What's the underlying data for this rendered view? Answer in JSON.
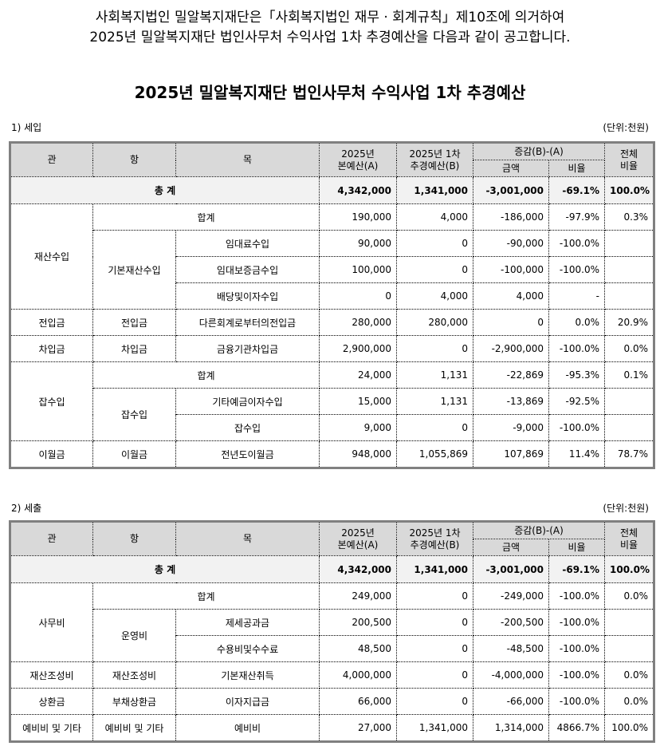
{
  "notice": {
    "line1": "사회복지법인 밀알복지재단은「사회복지법인 재무 · 회계규칙」제10조에 의거하여",
    "line2": "2025년 밀알복지재단 법인사무처 수익사업 1차 추경예산을 다음과 같이 공고합니다."
  },
  "title": "2025년 밀알복지재단 법인사무처 수익사업 1차 추경예산",
  "headers": {
    "gwan": "관",
    "hang": "항",
    "mok": "목",
    "a_line1": "2025년",
    "a_line2": "본예산(A)",
    "b_line1": "2025년 1차",
    "b_line2": "추경예산(B)",
    "diff": "증감(B)-(A)",
    "amount": "금액",
    "rate": "비율",
    "share_line1": "전체",
    "share_line2": "비율"
  },
  "revenue": {
    "section_label": "1) 세입",
    "unit": "(단위:천원)",
    "total": {
      "label": "총 계",
      "a": "4,342,000",
      "b": "1,341,000",
      "diff": "-3,001,000",
      "rate": "-69.1%",
      "share": "100.0%"
    },
    "groups": [
      {
        "gwan": "재산수입",
        "subtotal": {
          "label": "합계",
          "a": "190,000",
          "b": "4,000",
          "diff": "-186,000",
          "rate": "-97.9%",
          "share": "0.3%"
        },
        "hangs": [
          {
            "name": "기본재산수입",
            "items": [
              {
                "mok": "임대료수입",
                "a": "90,000",
                "b": "0",
                "diff": "-90,000",
                "rate": "-100.0%",
                "share": ""
              },
              {
                "mok": "임대보증금수입",
                "a": "100,000",
                "b": "0",
                "diff": "-100,000",
                "rate": "-100.0%",
                "share": ""
              },
              {
                "mok": "배당및이자수입",
                "a": "0",
                "b": "4,000",
                "diff": "4,000",
                "rate": "-",
                "share": ""
              }
            ]
          }
        ]
      },
      {
        "gwan": "전입금",
        "hangs": [
          {
            "name": "전입금",
            "items": [
              {
                "mok": "다른회계로부터의전입금",
                "a": "280,000",
                "b": "280,000",
                "diff": "0",
                "rate": "0.0%",
                "share": "20.9%"
              }
            ]
          }
        ]
      },
      {
        "gwan": "차입금",
        "hangs": [
          {
            "name": "차입금",
            "items": [
              {
                "mok": "금융기관차입금",
                "a": "2,900,000",
                "b": "0",
                "diff": "-2,900,000",
                "rate": "-100.0%",
                "share": "0.0%"
              }
            ]
          }
        ]
      },
      {
        "gwan": "잡수입",
        "subtotal": {
          "label": "합계",
          "a": "24,000",
          "b": "1,131",
          "diff": "-22,869",
          "rate": "-95.3%",
          "share": "0.1%"
        },
        "hangs": [
          {
            "name": "잡수입",
            "items": [
              {
                "mok": "기타예금이자수입",
                "a": "15,000",
                "b": "1,131",
                "diff": "-13,869",
                "rate": "-92.5%",
                "share": ""
              },
              {
                "mok": "잡수입",
                "a": "9,000",
                "b": "0",
                "diff": "-9,000",
                "rate": "-100.0%",
                "share": ""
              }
            ]
          }
        ]
      },
      {
        "gwan": "이월금",
        "hangs": [
          {
            "name": "이월금",
            "items": [
              {
                "mok": "전년도이월금",
                "a": "948,000",
                "b": "1,055,869",
                "diff": "107,869",
                "rate": "11.4%",
                "share": "78.7%"
              }
            ]
          }
        ]
      }
    ]
  },
  "expense": {
    "section_label": "2) 세출",
    "unit": "(단위:천원)",
    "total": {
      "label": "총 계",
      "a": "4,342,000",
      "b": "1,341,000",
      "diff": "-3,001,000",
      "rate": "-69.1%",
      "share": "100.0%"
    },
    "groups": [
      {
        "gwan": "사무비",
        "subtotal": {
          "label": "합계",
          "a": "249,000",
          "b": "0",
          "diff": "-249,000",
          "rate": "-100.0%",
          "share": "0.0%"
        },
        "hangs": [
          {
            "name": "운영비",
            "items": [
              {
                "mok": "제세공과금",
                "a": "200,500",
                "b": "0",
                "diff": "-200,500",
                "rate": "-100.0%",
                "share": ""
              },
              {
                "mok": "수용비및수수료",
                "a": "48,500",
                "b": "0",
                "diff": "-48,500",
                "rate": "-100.0%",
                "share": ""
              }
            ]
          }
        ]
      },
      {
        "gwan": "재산조성비",
        "hangs": [
          {
            "name": "재산조성비",
            "items": [
              {
                "mok": "기본재산취득",
                "a": "4,000,000",
                "b": "0",
                "diff": "-4,000,000",
                "rate": "-100.0%",
                "share": "0.0%"
              }
            ]
          }
        ]
      },
      {
        "gwan": "상환금",
        "hangs": [
          {
            "name": "부채상환금",
            "items": [
              {
                "mok": "이자지급금",
                "a": "66,000",
                "b": "0",
                "diff": "-66,000",
                "rate": "-100.0%",
                "share": "0.0%"
              }
            ]
          }
        ]
      },
      {
        "gwan": "예비비 및 기타",
        "hangs": [
          {
            "name": "예비비 및 기타",
            "items": [
              {
                "mok": "예비비",
                "a": "27,000",
                "b": "1,341,000",
                "diff": "1,314,000",
                "rate": "4866.7%",
                "share": "100.0%"
              }
            ]
          }
        ]
      }
    ]
  }
}
